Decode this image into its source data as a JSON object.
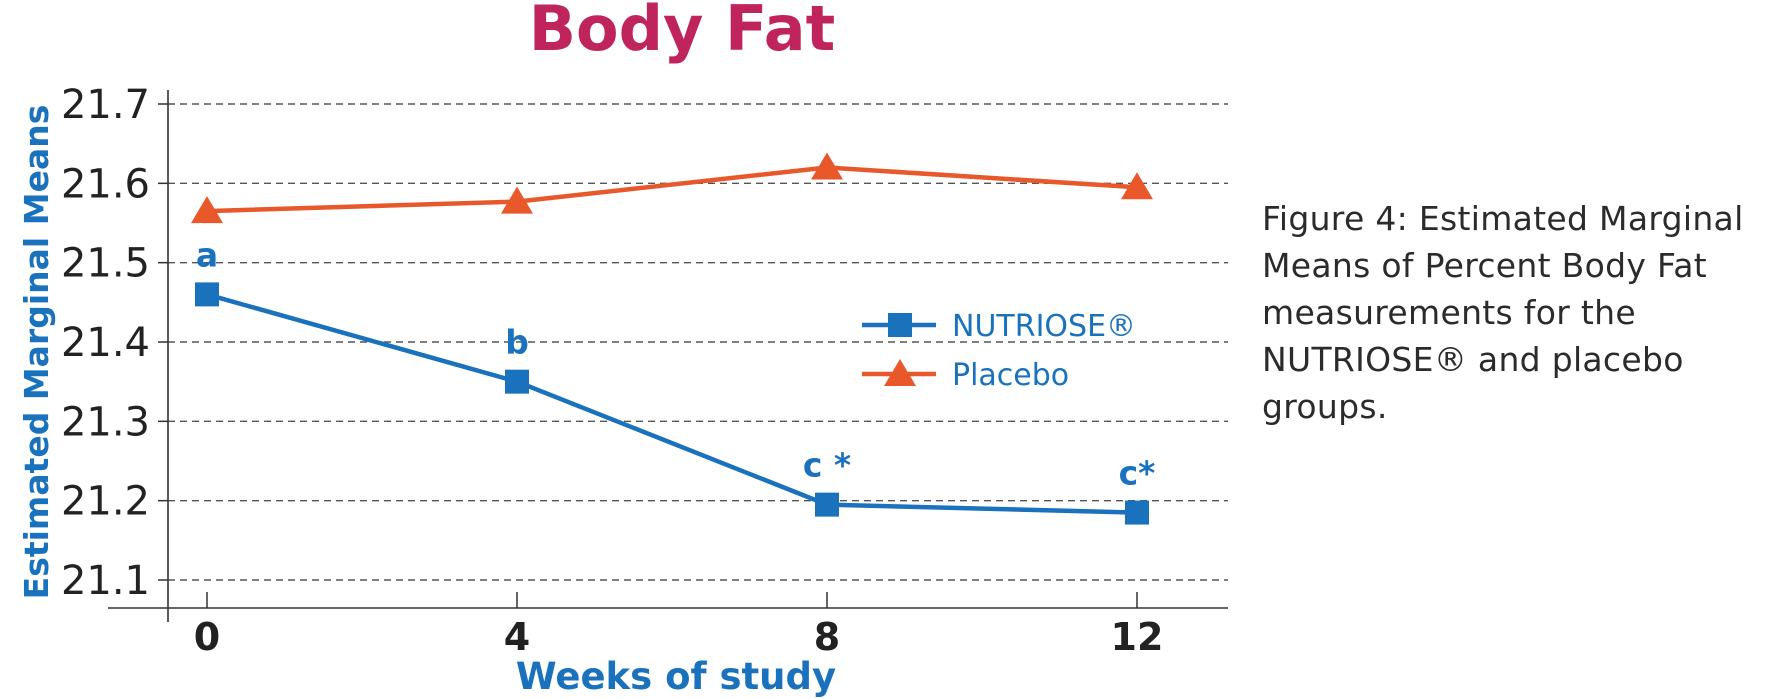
{
  "chart_data": {
    "type": "line",
    "title": "Body Fat",
    "xlabel": "Weeks of study",
    "ylabel": "Estimated Marginal Means",
    "x": [
      0,
      4,
      8,
      12
    ],
    "x_tick_labels": [
      "0",
      "4",
      "8",
      "12"
    ],
    "y_tick_labels": [
      "21.7",
      "21.6",
      "21.5",
      "21.4",
      "21.3",
      "21.2",
      "21.1"
    ],
    "ylim": [
      21.1,
      21.7
    ],
    "grid": "horizontal dashed",
    "legend_position": "center-right",
    "series": [
      {
        "name": "NUTRIOSE®",
        "values": [
          21.46,
          21.35,
          21.195,
          21.185
        ],
        "marker": "square",
        "color": "#1a72bd",
        "point_labels": [
          "a",
          "b",
          "c *",
          "c*"
        ]
      },
      {
        "name": "Placebo",
        "values": [
          21.565,
          21.577,
          21.62,
          21.595
        ],
        "marker": "triangle",
        "color": "#e8582a"
      }
    ],
    "colors": {
      "title": "#c0245c",
      "axis_label": "#1a72bd",
      "tick_text": "#222222",
      "grid": "#555555"
    }
  },
  "caption": {
    "lines": [
      "Figure 4: Estimated Marginal",
      "Means of Percent Body Fat",
      "measurements for the",
      "NUTRIOSE® and placebo",
      "groups."
    ]
  }
}
